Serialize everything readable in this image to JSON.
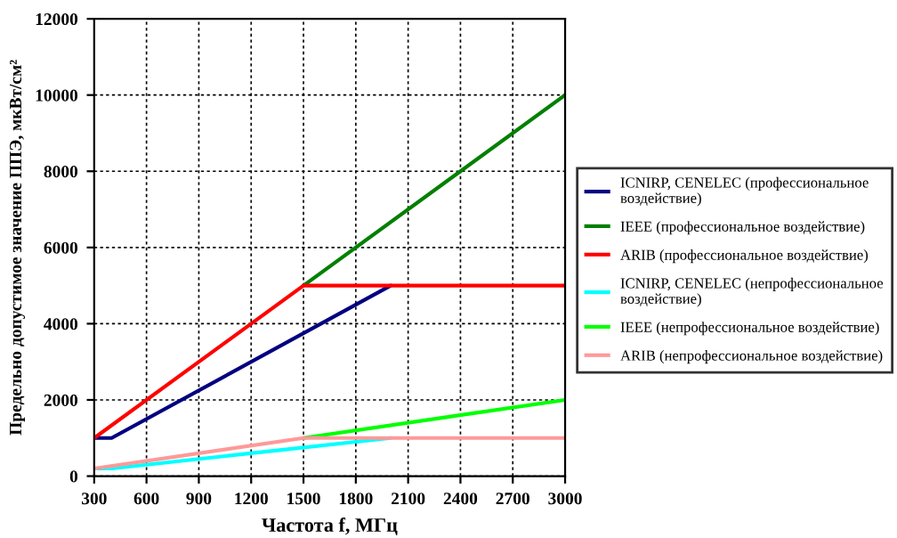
{
  "chart_data": {
    "type": "line",
    "xlabel": "Частота f, МГц",
    "ylabel": "Предельно допустимое значение ППЭ, мкВт/см²",
    "xlim": [
      300,
      3000
    ],
    "xticks": [
      300,
      600,
      900,
      1200,
      1500,
      1800,
      2100,
      2400,
      2700,
      3000
    ],
    "ylim": [
      0,
      12000
    ],
    "yticks": [
      0,
      2000,
      4000,
      6000,
      8000,
      10000,
      12000
    ],
    "grid": true,
    "legend": "right",
    "marker": "none",
    "line_style": "solid",
    "series": [
      {
        "name": "ICNIRP, CENELEC (профессиональное\nвоздействие)",
        "color": "#000080",
        "x": [
          300,
          400,
          2000
        ],
        "values": [
          1000,
          1000,
          5000
        ]
      },
      {
        "name": "IEEE (профессиональное воздействие)",
        "color": "#008000",
        "x": [
          1500,
          3000
        ],
        "values": [
          5000,
          10000
        ]
      },
      {
        "name": "ARIB (профессиональное воздействие)",
        "color": "#ff0000",
        "x": [
          300,
          1500,
          3000
        ],
        "values": [
          1000,
          5000,
          5000
        ]
      },
      {
        "name": "ICNIRP, CENELEC (непрофессиональное\nвоздействие)",
        "color": "#00ffff",
        "x": [
          300,
          400,
          2000
        ],
        "values": [
          200,
          200,
          1000
        ]
      },
      {
        "name": "IEEE (непрофессиональное воздействие)",
        "color": "#00ff00",
        "x": [
          1500,
          3000
        ],
        "values": [
          1000,
          2000
        ]
      },
      {
        "name": "ARIB (непрофессиональное воздействие)",
        "color": "#ff9999",
        "x": [
          300,
          1500,
          3000
        ],
        "values": [
          200,
          1000,
          1000
        ]
      }
    ]
  }
}
